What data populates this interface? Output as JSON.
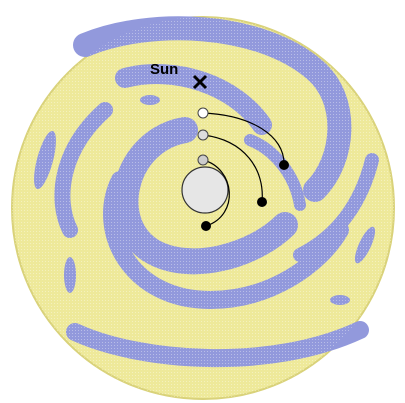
{
  "sun_label": "Sun"
}
